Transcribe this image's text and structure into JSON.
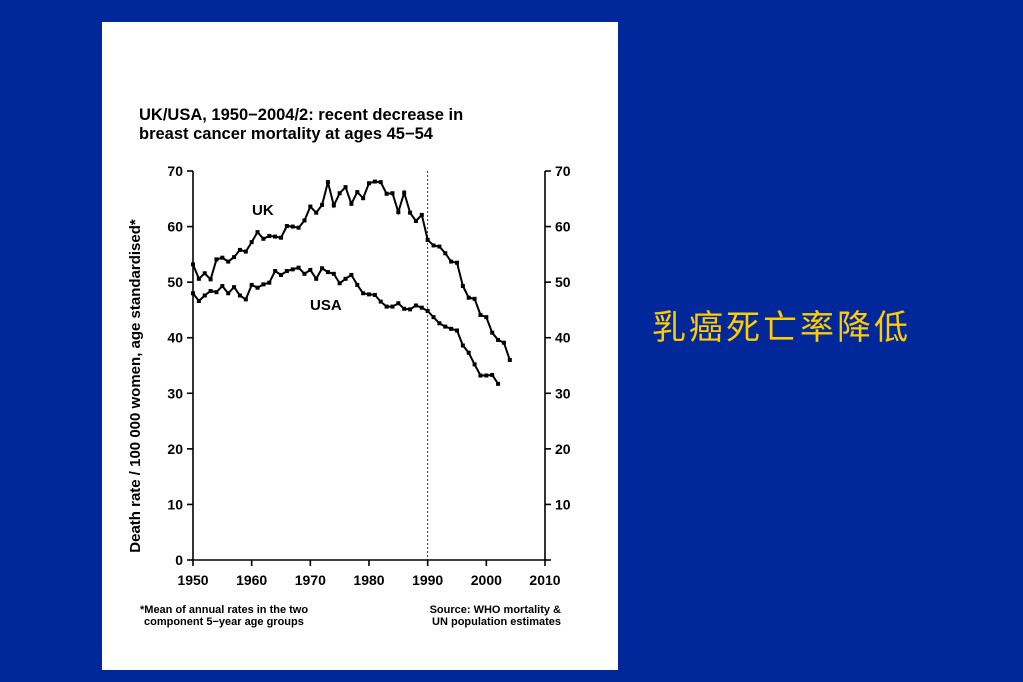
{
  "slide": {
    "caption": "乳癌死亡率降低",
    "background_color": "#00289A",
    "caption_color": "#FFCC00"
  },
  "chart": {
    "title_lines": [
      "UK/USA, 1950−2004/2: recent decrease in",
      "breast cancer mortality at ages 45−54"
    ],
    "ylabel": "Death rate / 100 000 women, age standardised*",
    "footnote_left": [
      "*Mean of annual rates in the two",
      "component 5−year age groups"
    ],
    "footnote_right": [
      "Source: WHO mortality &",
      "UN population estimates"
    ]
  },
  "chart_data": {
    "type": "line",
    "title": "UK/USA, 1950−2004/2: recent decrease in breast cancer mortality at ages 45−54",
    "xlabel": "",
    "ylabel": "Death rate / 100 000 women, age standardised*",
    "xlim": [
      1950,
      2010
    ],
    "ylim": [
      0,
      70
    ],
    "x_ticks": [
      1950,
      1960,
      1970,
      1980,
      1990,
      2000,
      2010
    ],
    "y_ticks": [
      0,
      10,
      20,
      30,
      40,
      50,
      60,
      70
    ],
    "y_axis_both_sides": true,
    "grid": false,
    "reference_line_x": 1990,
    "marker": "square",
    "series": [
      {
        "name": "UK",
        "x": [
          1950,
          1951,
          1952,
          1953,
          1954,
          1955,
          1956,
          1957,
          1958,
          1959,
          1960,
          1961,
          1962,
          1963,
          1964,
          1965,
          1966,
          1967,
          1968,
          1969,
          1970,
          1971,
          1972,
          1973,
          1974,
          1975,
          1976,
          1977,
          1978,
          1979,
          1980,
          1981,
          1982,
          1983,
          1984,
          1985,
          1986,
          1987,
          1988,
          1989,
          1990,
          1991,
          1992,
          1993,
          1994,
          1995,
          1996,
          1997,
          1998,
          1999,
          2000,
          2001,
          2002,
          2003,
          2004
        ],
        "y": [
          53.2,
          50.6,
          51.6,
          50.5,
          54.1,
          54.4,
          53.7,
          54.5,
          55.8,
          55.5,
          57.2,
          59.0,
          57.8,
          58.3,
          58.2,
          58.0,
          60.1,
          60.0,
          59.8,
          61.1,
          63.6,
          62.5,
          63.9,
          68.0,
          63.8,
          66.0,
          67.1,
          64.1,
          66.2,
          65.1,
          67.8,
          68.1,
          68.0,
          65.9,
          66.0,
          62.6,
          66.1,
          62.5,
          61.0,
          62.1,
          57.6,
          56.6,
          56.4,
          55.2,
          53.7,
          53.5,
          49.3,
          47.2,
          47.0,
          44.1,
          43.7,
          40.9,
          39.6,
          39.1,
          36.0
        ]
      },
      {
        "name": "USA",
        "x": [
          1950,
          1951,
          1952,
          1953,
          1954,
          1955,
          1956,
          1957,
          1958,
          1959,
          1960,
          1961,
          1962,
          1963,
          1964,
          1965,
          1966,
          1967,
          1968,
          1969,
          1970,
          1971,
          1972,
          1973,
          1974,
          1975,
          1976,
          1977,
          1978,
          1979,
          1980,
          1981,
          1982,
          1983,
          1984,
          1985,
          1986,
          1987,
          1988,
          1989,
          1990,
          1991,
          1992,
          1993,
          1994,
          1995,
          1996,
          1997,
          1998,
          1999,
          2000,
          2001,
          2002
        ],
        "y": [
          48.0,
          46.6,
          47.6,
          48.4,
          48.2,
          49.3,
          48.0,
          49.1,
          47.6,
          46.9,
          49.5,
          49.0,
          49.6,
          49.9,
          52.0,
          51.3,
          52.0,
          52.3,
          52.6,
          51.5,
          52.2,
          50.6,
          52.5,
          51.8,
          51.5,
          49.8,
          50.6,
          51.3,
          49.5,
          48.0,
          47.8,
          47.7,
          46.5,
          45.6,
          45.6,
          46.2,
          45.2,
          45.1,
          45.8,
          45.4,
          44.8,
          43.7,
          42.6,
          42.0,
          41.6,
          41.3,
          38.6,
          37.3,
          35.2,
          33.2,
          33.2,
          33.3,
          31.7
        ]
      }
    ]
  }
}
